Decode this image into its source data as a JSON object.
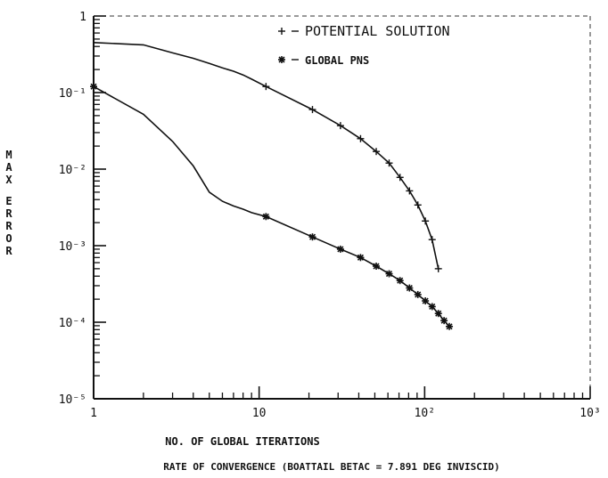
{
  "chart_data": {
    "type": "line",
    "title": "RATE OF CONVERGENCE (BOATTAIL BETAC = 7.891 DEG INVISCID)",
    "xlabel": "NO. OF GLOBAL ITERATIONS",
    "ylabel": "MAX ERROR",
    "x_scale": "log",
    "y_scale": "log",
    "xlim": [
      1,
      1000
    ],
    "ylim": [
      1e-05,
      1
    ],
    "x_ticks": [
      {
        "value": 1,
        "label": "1"
      },
      {
        "value": 10,
        "label": "10"
      },
      {
        "value": 100,
        "label": "10²"
      },
      {
        "value": 1000,
        "label": "10³"
      }
    ],
    "y_ticks": [
      {
        "value": 1,
        "label": "1"
      },
      {
        "value": 0.1,
        "label": "10⁻¹"
      },
      {
        "value": 0.01,
        "label": "10⁻²"
      },
      {
        "value": 0.001,
        "label": "10⁻³"
      },
      {
        "value": 0.0001,
        "label": "10⁻⁴"
      },
      {
        "value": 1e-05,
        "label": "10⁻⁵"
      }
    ],
    "grid": false,
    "legend_position": "top-right",
    "series": [
      {
        "name": "POTENTIAL SOLUTION",
        "marker": "+",
        "x": [
          1,
          2,
          3,
          4,
          5,
          6,
          7,
          8,
          9,
          11,
          21,
          31,
          41,
          51,
          61,
          71,
          81,
          91,
          101,
          111,
          121
        ],
        "y": [
          0.45,
          0.42,
          0.33,
          0.28,
          0.24,
          0.21,
          0.19,
          0.17,
          0.15,
          0.12,
          0.06,
          0.037,
          0.025,
          0.017,
          0.012,
          0.0078,
          0.0052,
          0.0034,
          0.0021,
          0.0012,
          0.0005
        ],
        "marked_points": [
          11,
          21,
          31,
          41,
          51,
          61,
          71,
          81,
          91,
          101,
          111,
          121
        ]
      },
      {
        "name": "GLOBAL PNS",
        "marker": "*",
        "x": [
          1,
          2,
          3,
          4,
          5,
          6,
          7,
          8,
          9,
          11,
          21,
          31,
          41,
          51,
          61,
          71,
          81,
          91,
          101,
          111,
          121,
          131,
          141
        ],
        "y": [
          0.12,
          0.052,
          0.023,
          0.011,
          0.005,
          0.0038,
          0.0033,
          0.003,
          0.0027,
          0.0024,
          0.0013,
          0.0009,
          0.0007,
          0.00054,
          0.00043,
          0.00035,
          0.00028,
          0.00023,
          0.00019,
          0.00016,
          0.00013,
          0.000105,
          8.8e-05
        ],
        "marked_points": [
          1,
          11,
          21,
          31,
          41,
          51,
          61,
          71,
          81,
          91,
          101,
          111,
          121,
          131,
          141
        ]
      }
    ]
  }
}
